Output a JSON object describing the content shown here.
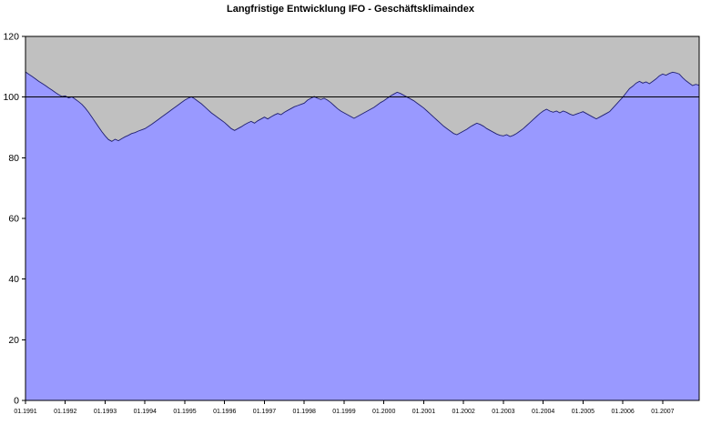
{
  "chart_data": {
    "type": "area",
    "title": "Langfristige Entwicklung IFO - Geschäftsklimaindex",
    "x_tick_labels": [
      "01.1991",
      "01.1992",
      "01.1993",
      "01.1994",
      "01.1995",
      "01.1996",
      "01.1997",
      "01.1998",
      "01.1999",
      "01.2000",
      "01.2001",
      "01.2002",
      "01.2003",
      "01.2004",
      "01.2005",
      "01.2006",
      "01.2007"
    ],
    "months_per_tick": 12,
    "values": [
      108.3,
      107.5,
      106.8,
      106.0,
      105.2,
      104.5,
      103.8,
      103.0,
      102.3,
      101.5,
      100.8,
      100.2,
      100.4,
      99.7,
      100.1,
      99.3,
      98.5,
      97.6,
      96.4,
      95.0,
      93.4,
      91.8,
      90.2,
      88.6,
      87.2,
      86.0,
      85.4,
      86.1,
      85.6,
      86.3,
      86.9,
      87.4,
      88.0,
      88.3,
      88.8,
      89.2,
      89.6,
      90.3,
      91.0,
      91.8,
      92.6,
      93.4,
      94.2,
      95.0,
      95.8,
      96.6,
      97.4,
      98.2,
      99.0,
      99.6,
      100.1,
      99.4,
      98.6,
      97.8,
      96.8,
      95.8,
      94.8,
      94.0,
      93.2,
      92.4,
      91.6,
      90.6,
      89.6,
      89.0,
      89.6,
      90.2,
      90.9,
      91.5,
      92.0,
      91.4,
      92.2,
      92.8,
      93.4,
      92.8,
      93.5,
      94.1,
      94.6,
      94.2,
      95.0,
      95.6,
      96.2,
      96.8,
      97.2,
      97.6,
      98.0,
      99.0,
      99.6,
      100.2,
      99.6,
      99.2,
      99.6,
      99.0,
      98.2,
      97.2,
      96.2,
      95.4,
      94.8,
      94.2,
      93.6,
      93.0,
      93.6,
      94.2,
      94.8,
      95.4,
      96.0,
      96.6,
      97.4,
      98.2,
      98.8,
      99.6,
      100.4,
      101.0,
      101.6,
      101.2,
      100.6,
      100.0,
      99.4,
      98.8,
      98.0,
      97.2,
      96.4,
      95.4,
      94.4,
      93.4,
      92.4,
      91.4,
      90.4,
      89.6,
      88.8,
      88.0,
      87.6,
      88.2,
      88.8,
      89.4,
      90.2,
      90.8,
      91.4,
      91.0,
      90.4,
      89.6,
      89.0,
      88.4,
      87.8,
      87.4,
      87.2,
      87.6,
      87.0,
      87.4,
      88.0,
      88.8,
      89.6,
      90.6,
      91.6,
      92.6,
      93.6,
      94.6,
      95.4,
      96.0,
      95.4,
      95.0,
      95.4,
      94.8,
      95.4,
      95.0,
      94.4,
      94.0,
      94.4,
      94.8,
      95.2,
      94.6,
      94.0,
      93.4,
      92.8,
      93.4,
      94.0,
      94.6,
      95.2,
      96.4,
      97.6,
      98.8,
      100.0,
      101.4,
      102.8,
      103.6,
      104.6,
      105.2,
      104.6,
      105.0,
      104.4,
      105.2,
      106.0,
      107.0,
      107.6,
      107.2,
      107.8,
      108.2,
      108.0,
      107.6,
      106.4,
      105.4,
      104.6,
      103.8,
      104.2,
      103.9
    ],
    "ylim": [
      0,
      120
    ],
    "y_ticks": [
      0,
      20,
      40,
      60,
      80,
      100,
      120
    ],
    "reference_line_y": 100,
    "grid": "off",
    "legend": "none",
    "colors": {
      "plot_bg": "#C0C0C0",
      "plot_border": "#000000",
      "area_fill": "#9999FF",
      "area_edge": "#202070",
      "reference_line": "#000000",
      "axis_text": "#000000",
      "page_bg": "#FFFFFF"
    }
  }
}
